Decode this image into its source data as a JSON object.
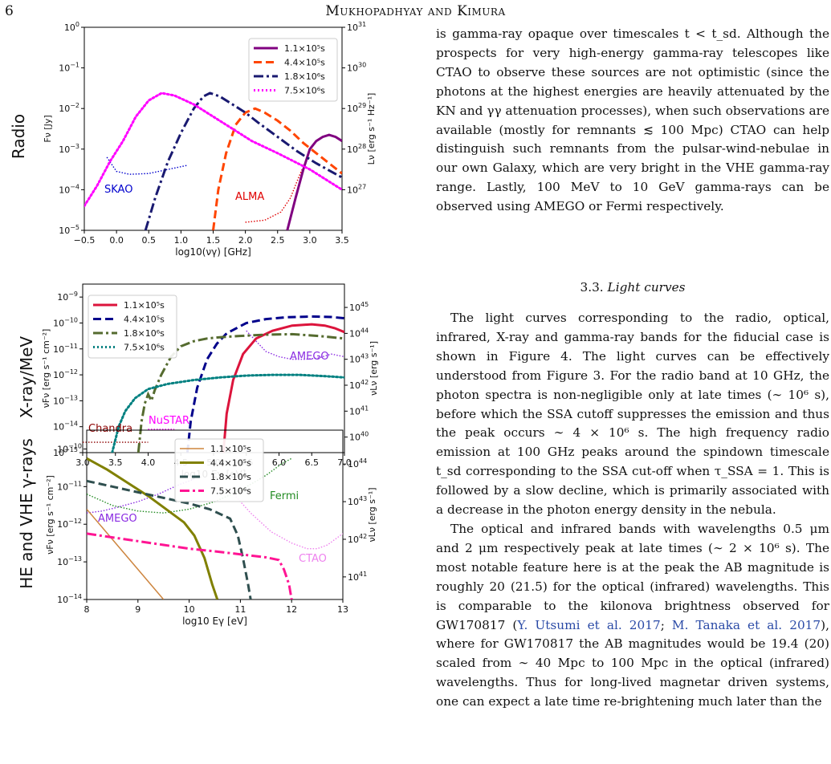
{
  "header": {
    "page_number": "6",
    "running_head": "Mukhopadhyay and Kimura"
  },
  "chart_data": [
    {
      "type": "line",
      "panel_label": "Radio",
      "xlabel": "log10(νγ) [GHz]",
      "ylabel": "Fν [Jy]",
      "ylabel_right": "Lν [erg s⁻¹ Hz⁻¹]",
      "xlim": [
        -0.5,
        3.5
      ],
      "ylim": [
        -5,
        0
      ],
      "ylim_right": [
        26,
        31
      ],
      "y_scale": "log",
      "x_ticks": [
        "−0.5",
        "0.0",
        "0.5",
        "1.0",
        "1.5",
        "2.0",
        "2.5",
        "3.0",
        "3.5"
      ],
      "y_tick_exponents": [
        "0",
        "−1",
        "−2",
        "−3",
        "−4",
        "−5"
      ],
      "y_right_tick_exponents": [
        "31",
        "30",
        "29",
        "28",
        "27"
      ],
      "legend_position": "top-right",
      "series": [
        {
          "name": "1.1×10⁵s",
          "color": "#800080",
          "style": "solid",
          "x": [
            2.65,
            2.78,
            2.9,
            3.0,
            3.1,
            3.2,
            3.3,
            3.4,
            3.5
          ],
          "y": [
            -5.0,
            -4.2,
            -3.5,
            -3.0,
            -2.8,
            -2.7,
            -2.65,
            -2.7,
            -2.8
          ]
        },
        {
          "name": "4.4×10⁵s",
          "color": "#ff4500",
          "style": "dashed",
          "x": [
            1.5,
            1.58,
            1.7,
            1.85,
            2.0,
            2.15,
            2.3,
            2.5,
            2.7,
            2.9,
            3.1,
            3.3,
            3.5
          ],
          "y": [
            -5.0,
            -4.0,
            -3.1,
            -2.4,
            -2.1,
            -2.0,
            -2.1,
            -2.3,
            -2.55,
            -2.85,
            -3.1,
            -3.35,
            -3.6
          ]
        },
        {
          "name": "1.8×10⁶s",
          "color": "#191970",
          "style": "dashdot",
          "x": [
            0.45,
            0.6,
            0.8,
            1.0,
            1.2,
            1.35,
            1.45,
            1.6,
            1.8,
            2.0,
            2.2,
            2.5,
            2.8,
            3.1,
            3.5
          ],
          "y": [
            -5.0,
            -4.2,
            -3.3,
            -2.6,
            -2.0,
            -1.7,
            -1.62,
            -1.7,
            -1.9,
            -2.1,
            -2.35,
            -2.7,
            -3.05,
            -3.35,
            -3.7
          ]
        },
        {
          "name": "7.5×10⁶s",
          "color": "#ff00ff",
          "style": "dotted",
          "x": [
            -0.5,
            -0.3,
            -0.1,
            0.1,
            0.3,
            0.5,
            0.7,
            0.9,
            1.2,
            1.5,
            1.8,
            2.1,
            2.5,
            3.0,
            3.5
          ],
          "y": [
            -4.4,
            -3.9,
            -3.3,
            -2.8,
            -2.2,
            -1.8,
            -1.62,
            -1.68,
            -1.9,
            -2.2,
            -2.5,
            -2.8,
            -3.1,
            -3.5,
            -4.0
          ]
        }
      ],
      "sensitivity_curves": [
        {
          "label": "SKAO",
          "color": "#0000cd",
          "x": [
            -0.15,
            0.0,
            0.2,
            0.5,
            0.8,
            1.1
          ],
          "y": [
            -3.2,
            -3.55,
            -3.62,
            -3.6,
            -3.5,
            -3.4
          ]
        },
        {
          "label": "ALMA",
          "color": "#e00000",
          "x": [
            2.0,
            2.3,
            2.55,
            2.7,
            2.8,
            2.88
          ],
          "y": [
            -4.8,
            -4.75,
            -4.55,
            -4.2,
            -3.8,
            -3.5
          ]
        }
      ]
    },
    {
      "type": "line",
      "panel_label": "X-ray/MeV",
      "xlabel": "log10 Eγ [eV]",
      "ylabel": "νFν [erg s⁻¹ cm⁻²]",
      "ylabel_right": "νLν [erg s⁻¹]",
      "xlim": [
        3.0,
        7.0
      ],
      "ylim": [
        -15,
        -8.5
      ],
      "ylim_right": [
        39.4,
        45.9
      ],
      "y_scale": "log",
      "x_ticks": [
        "3.0",
        "3.5",
        "4.0",
        "4.5",
        "5.0",
        "5.5",
        "6.0",
        "6.5",
        "7.0"
      ],
      "y_tick_exponents": [
        "−9",
        "−10",
        "−11",
        "−12",
        "−13",
        "−14",
        "−15"
      ],
      "y_right_tick_exponents": [
        "45",
        "44",
        "43",
        "42",
        "41",
        "40"
      ],
      "legend_position": "top-left",
      "series": [
        {
          "name": "1.1×10⁵s",
          "color": "#dc143c",
          "style": "solid",
          "x": [
            5.15,
            5.2,
            5.3,
            5.45,
            5.65,
            5.9,
            6.2,
            6.5,
            6.7,
            6.85,
            7.0
          ],
          "y": [
            -15.0,
            -13.5,
            -12.2,
            -11.2,
            -10.6,
            -10.3,
            -10.1,
            -10.05,
            -10.1,
            -10.2,
            -10.35
          ]
        },
        {
          "name": "4.4×10⁵s",
          "color": "#00008b",
          "style": "dashed",
          "x": [
            4.6,
            4.65,
            4.75,
            4.9,
            5.05,
            5.2,
            5.5,
            5.8,
            6.1,
            6.5,
            6.8,
            7.0
          ],
          "y": [
            -15.0,
            -13.8,
            -12.5,
            -11.4,
            -10.8,
            -10.4,
            -10.0,
            -9.85,
            -9.78,
            -9.75,
            -9.77,
            -9.82
          ]
        },
        {
          "name": "1.8×10⁶s",
          "color": "#556b2f",
          "style": "dashdot",
          "x": [
            3.85,
            3.9,
            3.95,
            4.0,
            4.05,
            4.1,
            4.2,
            4.35,
            4.5,
            4.7,
            4.9,
            5.1,
            5.4,
            5.8,
            6.2,
            6.6,
            7.0
          ],
          "y": [
            -15.0,
            -13.8,
            -13.1,
            -12.75,
            -13.0,
            -12.6,
            -12.0,
            -11.3,
            -10.9,
            -10.7,
            -10.6,
            -10.55,
            -10.5,
            -10.45,
            -10.43,
            -10.5,
            -10.6
          ]
        },
        {
          "name": "7.5×10⁶s",
          "color": "#008080",
          "style": "dotted",
          "x": [
            3.45,
            3.55,
            3.65,
            3.8,
            4.0,
            4.3,
            4.7,
            5.1,
            5.5,
            5.9,
            6.3,
            6.7,
            7.0
          ],
          "y": [
            -15.0,
            -14.0,
            -13.4,
            -12.9,
            -12.55,
            -12.35,
            -12.2,
            -12.1,
            -12.03,
            -12.0,
            -12.0,
            -12.05,
            -12.1
          ]
        }
      ],
      "sensitivity_curves": [
        {
          "label": "Chandra",
          "color": "#8b0000",
          "x": [
            3.0,
            4.0
          ],
          "y": [
            -14.6,
            -14.6
          ]
        },
        {
          "label": "NuSTAR",
          "color": "#ff00ff",
          "x": [
            4.0,
            4.4
          ],
          "y": [
            -14.1,
            -14.1
          ]
        },
        {
          "label": "AMEGO",
          "color": "#8a2be2",
          "x": [
            5.5,
            5.65,
            5.8,
            6.0,
            6.2,
            6.4,
            6.6,
            6.8,
            7.0
          ],
          "y": [
            -10.3,
            -10.7,
            -11.1,
            -11.3,
            -11.4,
            -11.4,
            -11.35,
            -11.2,
            -11.3
          ]
        }
      ]
    },
    {
      "type": "line",
      "panel_label": "HE and VHE γ-rays",
      "xlabel": "log10 Eγ [eV]",
      "ylabel": "νFν [erg s⁻¹ cm⁻²]",
      "ylabel_right": "νLν [erg s⁻¹]",
      "xlim": [
        8,
        13
      ],
      "ylim": [
        -14,
        -9.5
      ],
      "ylim_right": [
        40.4,
        44.9
      ],
      "y_scale": "log",
      "x_ticks": [
        "8",
        "9",
        "10",
        "11",
        "12",
        "13"
      ],
      "y_tick_exponents": [
        "−10",
        "−11",
        "−12",
        "−13",
        "−14"
      ],
      "y_right_tick_exponents": [
        "44",
        "43",
        "42",
        "41"
      ],
      "legend_position": "top-center",
      "series": [
        {
          "name": "1.1×10⁵s",
          "color": "#cd853f",
          "style": "solid",
          "x": [
            8.0,
            8.5,
            9.0,
            9.5
          ],
          "y": [
            -11.6,
            -12.4,
            -13.2,
            -14.0
          ]
        },
        {
          "name": "4.4×10⁵s",
          "color": "#808000",
          "style": "solid",
          "x": [
            8.0,
            8.4,
            8.8,
            9.2,
            9.6,
            9.9,
            10.1,
            10.3,
            10.45,
            10.55
          ],
          "y": [
            -10.25,
            -10.55,
            -10.9,
            -11.25,
            -11.65,
            -11.95,
            -12.3,
            -12.9,
            -13.6,
            -14.0
          ]
        },
        {
          "name": "1.8×10⁶s",
          "color": "#2f4f4f",
          "style": "dashed",
          "x": [
            8.0,
            8.5,
            9.0,
            9.5,
            10.0,
            10.4,
            10.8,
            10.95,
            11.05,
            11.15,
            11.2
          ],
          "y": [
            -10.85,
            -11.0,
            -11.15,
            -11.3,
            -11.45,
            -11.6,
            -11.85,
            -12.3,
            -12.9,
            -13.6,
            -14.0
          ]
        },
        {
          "name": "7.5×10⁶s",
          "color": "#ff1493",
          "style": "dashdot",
          "x": [
            8.0,
            8.5,
            9.0,
            9.5,
            10.0,
            10.5,
            11.0,
            11.5,
            11.75,
            11.85,
            11.95,
            12.0
          ],
          "y": [
            -12.25,
            -12.35,
            -12.45,
            -12.55,
            -12.65,
            -12.72,
            -12.8,
            -12.88,
            -12.95,
            -13.2,
            -13.6,
            -14.0
          ]
        }
      ],
      "sensitivity_curves": [
        {
          "label": "AMEGO",
          "color": "#8a2be2",
          "x": [
            8.0,
            8.3,
            8.6,
            9.0,
            9.4,
            9.8,
            10.1
          ],
          "y": [
            -11.7,
            -11.65,
            -11.55,
            -11.4,
            -11.2,
            -10.95,
            -10.8
          ]
        },
        {
          "label": "Fermi",
          "color": "#228b22",
          "x": [
            8.0,
            8.5,
            9.0,
            9.5,
            10.0,
            10.5,
            11.0,
            11.5,
            11.8,
            12.0
          ],
          "y": [
            -11.2,
            -11.5,
            -11.65,
            -11.7,
            -11.6,
            -11.4,
            -11.1,
            -10.7,
            -10.4,
            -10.25
          ]
        },
        {
          "label": "CTAO",
          "color": "#ee82ee",
          "x": [
            10.8,
            11.2,
            11.6,
            12.0,
            12.3,
            12.5,
            12.7,
            12.9,
            13.0
          ],
          "y": [
            -11.1,
            -11.7,
            -12.2,
            -12.5,
            -12.65,
            -12.65,
            -12.55,
            -12.35,
            -12.25
          ]
        }
      ]
    }
  ],
  "body": {
    "para1": "is gamma-ray opaque over timescales t < t_sd. Although the prospects for very high-energy gamma-ray telescopes like CTAO to observe these sources are not optimistic (since the photons at the highest energies are heavily attenuated by the KN and γγ attenuation processes), when such observations are available (mostly for remnants ≲ 100 Mpc) CTAO can help distinguish such remnants from the pulsar-wind-nebulae in our own Galaxy, which are very bright in the VHE gamma-ray range. Lastly, 100 MeV to 10 GeV gamma-rays can be observed using AMEGO or Fermi respectively.",
    "section_number": "3.3.",
    "section_title": "Light curves",
    "para2": "The light curves corresponding to the radio, optical, infrared, X-ray and gamma-ray bands for the fiducial case is shown in Figure 4. The light curves can be effectively understood from Figure 3. For the radio band at 10 GHz, the photon spectra is non-negligible only at late times (∼ 10⁶ s), before which the SSA cutoff suppresses the emission and thus the peak occurs ∼ 4 × 10⁶ s. The high frequency radio emission at 100 GHz peaks around the spindown timescale t_sd corresponding to the SSA cut-off when τ_SSA = 1. This is followed by a slow decline, which is primarily associated with a decrease in the photon energy density in the nebula.",
    "para3_before": "The optical and infrared bands with wavelengths 0.5 μm and 2 μm respectively peak at late times (∼ 2 × 10⁶ s). The most notable feature here is at the peak the AB magnitude is roughly 20 (21.5) for the optical (infrared) wavelengths. This is comparable to the kilonova brightness observed for GW170817 (",
    "cite1": "Y. Utsumi et al. 2017",
    "para3_sep": "; ",
    "cite2": "M. Tanaka et al. 2017",
    "para3_after": "), where for GW170817 the AB magnitudes would be 19.4 (20) scaled from ∼ 40 Mpc to 100 Mpc in the optical (infrared) wavelengths. Thus for long-lived magnetar driven systems, one can expect a late time re-brightening much later than the"
  }
}
